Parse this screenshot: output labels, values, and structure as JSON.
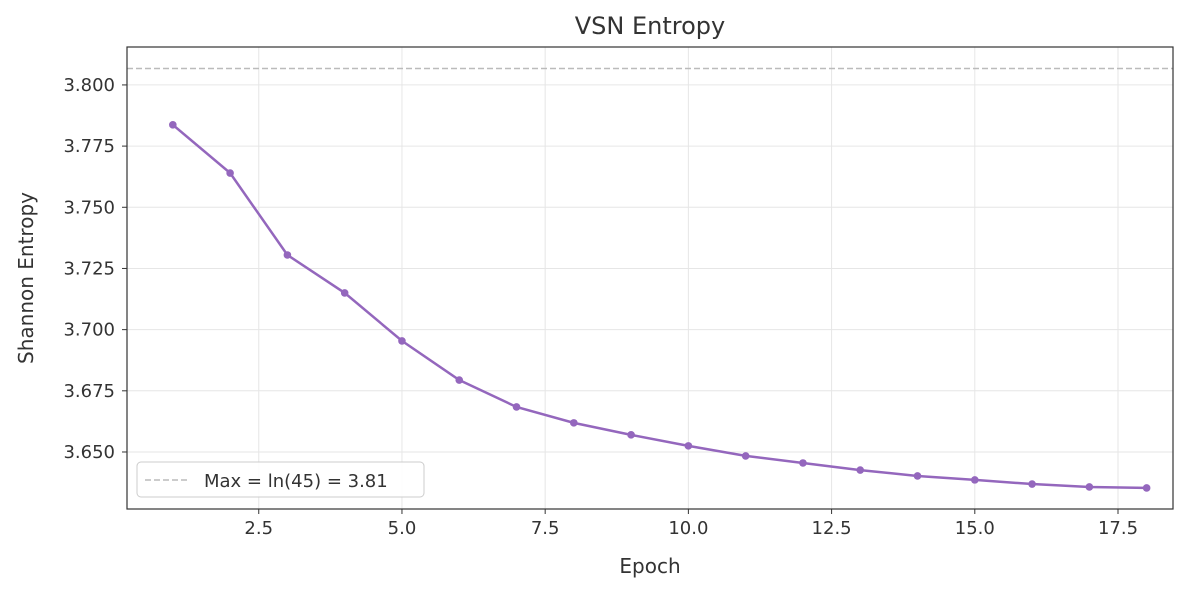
{
  "chart_data": {
    "type": "line",
    "title": "VSN Entropy",
    "xlabel": "Epoch",
    "ylabel": "Shannon Entropy",
    "xlim": [
      0.2,
      18.46
    ],
    "ylim": [
      3.6267,
      3.8155
    ],
    "xticks": [
      2.5,
      5.0,
      7.5,
      10.0,
      12.5,
      15.0,
      17.5
    ],
    "xtick_labels": [
      "2.5",
      "5.0",
      "7.5",
      "10.0",
      "12.5",
      "15.0",
      "17.5"
    ],
    "yticks": [
      3.65,
      3.675,
      3.7,
      3.725,
      3.75,
      3.775,
      3.8
    ],
    "ytick_labels": [
      "3.650",
      "3.675",
      "3.700",
      "3.725",
      "3.750",
      "3.775",
      "3.800"
    ],
    "grid": true,
    "legend_placement": "lower-left",
    "series": [
      {
        "color": "#9467bd",
        "marker": "circle",
        "x": [
          1,
          2,
          3,
          4,
          5,
          6,
          7,
          8,
          9,
          10,
          11,
          12,
          13,
          14,
          15,
          16,
          17,
          18
        ],
        "y": [
          3.7837,
          3.764,
          3.7305,
          3.715,
          3.6954,
          3.6794,
          3.6684,
          3.6619,
          3.657,
          3.6525,
          3.6484,
          3.6455,
          3.6426,
          3.6402,
          3.6386,
          3.6369,
          3.6357,
          3.6353
        ]
      }
    ],
    "reference_line": {
      "name": "Max = ln(45) = 3.81",
      "y": 3.8067,
      "color": "#bbbbbb",
      "style": "dashed"
    }
  }
}
